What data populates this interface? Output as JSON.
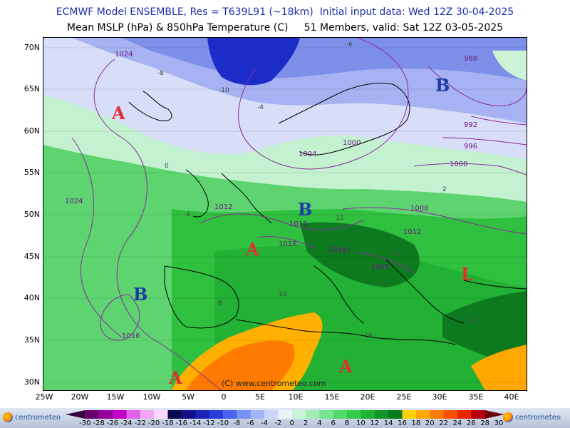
{
  "header": {
    "line1": "ECMWF Model ENSEMBLE, Res = T639L91 (~18km)  Initial input data: Wed 12Z 30-04-2025",
    "line2": "Mean MSLP (hPa) & 850hPa Temperature (C)     51 Members, valid: Sat 12Z 03-05-2025"
  },
  "map": {
    "lat_labels": [
      "70N",
      "65N",
      "60N",
      "55N",
      "50N",
      "45N",
      "40N",
      "35N",
      "30N"
    ],
    "lon_labels": [
      "25W",
      "20W",
      "15W",
      "10W",
      "5W",
      "0",
      "5E",
      "10E",
      "15E",
      "20E",
      "25E",
      "30E",
      "35E",
      "40E"
    ],
    "watermark": "(C) www.centrometeo.com",
    "pressure_centers": [
      {
        "label": "A",
        "type": "high"
      },
      {
        "label": "A",
        "type": "high"
      },
      {
        "label": "A",
        "type": "high"
      },
      {
        "label": "A",
        "type": "high"
      },
      {
        "label": "B",
        "type": "low"
      },
      {
        "label": "B",
        "type": "low"
      },
      {
        "label": "B",
        "type": "low"
      },
      {
        "label": "L",
        "type": "low"
      }
    ],
    "isobar_labels": [
      "1024",
      "1024",
      "1016",
      "1012",
      "1012",
      "1016",
      "1016",
      "1016",
      "1012",
      "1012",
      "1008",
      "1004",
      "1000",
      "1000",
      "996",
      "992",
      "988"
    ],
    "temperature_labels": [
      "-10",
      "-8",
      "-4",
      "0",
      "4",
      "8",
      "10",
      "12",
      "12",
      "14",
      "14",
      "16",
      "2",
      "-6"
    ]
  },
  "colorbar": {
    "ticks": [
      "-30",
      "-28",
      "-26",
      "-24",
      "-22",
      "-20",
      "-18",
      "-16",
      "-14",
      "-12",
      "-10",
      "-8",
      "-6",
      "-4",
      "-2",
      "0",
      "2",
      "4",
      "6",
      "8",
      "10",
      "12",
      "14",
      "16",
      "18",
      "20",
      "22",
      "24",
      "26",
      "28",
      "30"
    ],
    "colors": [
      "#3b0040",
      "#6a006e",
      "#98009e",
      "#c400c8",
      "#e060e8",
      "#f0a8f4",
      "#ffd8ff",
      "#0a0a50",
      "#101088",
      "#1a22b8",
      "#2a3cdc",
      "#4a64ee",
      "#7890f2",
      "#a4b4f6",
      "#ccd4fa",
      "#eaf2fa",
      "#c8f5d8",
      "#a0ecb4",
      "#78e48e",
      "#52da6a",
      "#34cc4a",
      "#20b436",
      "#109428",
      "#0c7a1e",
      "#ffd000",
      "#ffa800",
      "#ff7c00",
      "#ff5000",
      "#e82400",
      "#b80010",
      "#6a0008"
    ]
  },
  "logo": {
    "text": "centrometeo"
  }
}
